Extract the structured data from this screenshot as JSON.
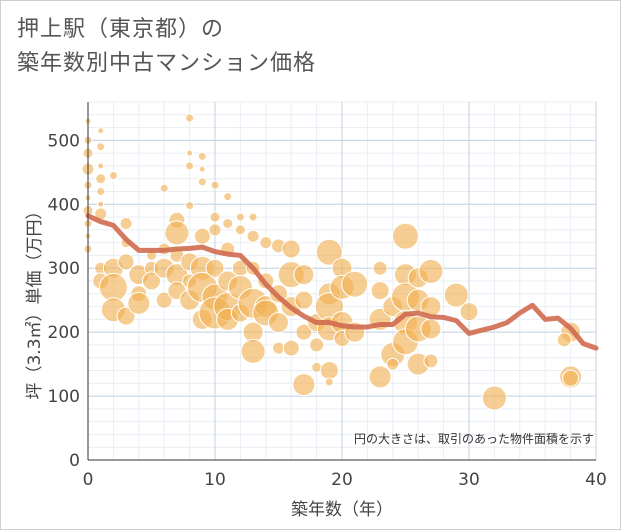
{
  "title_line1": "押上駅（東京都）の",
  "title_line2": "築年数別中古マンション価格",
  "chart_data": {
    "type": "scatter",
    "xlabel": "築年数（年）",
    "ylabel": "坪（3.3㎡）単価（万円）",
    "xlim": [
      0,
      40
    ],
    "ylim": [
      0,
      560
    ],
    "xticks": [
      0,
      10,
      20,
      30,
      40
    ],
    "yticks": [
      0,
      100,
      200,
      300,
      400,
      500
    ],
    "grid": true,
    "note": "円の大きさは、取引のあった物件面積を示す",
    "colors": {
      "bubble": "#f0b050",
      "line": "#d06a50"
    },
    "trend_line": {
      "x": [
        0,
        1,
        2,
        3,
        4,
        5,
        6,
        7,
        8,
        9,
        10,
        11,
        12,
        13,
        14,
        15,
        16,
        17,
        18,
        19,
        20,
        21,
        22,
        23,
        24,
        25,
        26,
        27,
        28,
        29,
        30,
        31,
        32,
        33,
        34,
        35,
        36,
        37,
        38,
        39,
        40
      ],
      "y": [
        382,
        373,
        367,
        345,
        328,
        328,
        328,
        330,
        331,
        333,
        326,
        322,
        320,
        300,
        275,
        255,
        238,
        225,
        215,
        215,
        210,
        208,
        208,
        212,
        212,
        228,
        230,
        224,
        223,
        218,
        198,
        203,
        208,
        215,
        230,
        242,
        220,
        222,
        206,
        182,
        175
      ]
    },
    "bubbles": [
      {
        "x": 0,
        "y": 530,
        "s": 3
      },
      {
        "x": 0,
        "y": 500,
        "s": 4
      },
      {
        "x": 0,
        "y": 480,
        "s": 5
      },
      {
        "x": 0,
        "y": 455,
        "s": 6
      },
      {
        "x": 0,
        "y": 430,
        "s": 4
      },
      {
        "x": 0,
        "y": 410,
        "s": 3
      },
      {
        "x": 0,
        "y": 390,
        "s": 5
      },
      {
        "x": 0,
        "y": 370,
        "s": 4
      },
      {
        "x": 0,
        "y": 350,
        "s": 3
      },
      {
        "x": 0,
        "y": 330,
        "s": 4
      },
      {
        "x": 1,
        "y": 515,
        "s": 3
      },
      {
        "x": 1,
        "y": 490,
        "s": 4
      },
      {
        "x": 1,
        "y": 460,
        "s": 3
      },
      {
        "x": 1,
        "y": 440,
        "s": 5
      },
      {
        "x": 1,
        "y": 420,
        "s": 4
      },
      {
        "x": 1,
        "y": 400,
        "s": 3
      },
      {
        "x": 1,
        "y": 385,
        "s": 6
      },
      {
        "x": 1,
        "y": 300,
        "s": 6
      },
      {
        "x": 1,
        "y": 280,
        "s": 8
      },
      {
        "x": 2,
        "y": 445,
        "s": 4
      },
      {
        "x": 2,
        "y": 300,
        "s": 10
      },
      {
        "x": 2,
        "y": 270,
        "s": 14
      },
      {
        "x": 2,
        "y": 235,
        "s": 12
      },
      {
        "x": 3,
        "y": 370,
        "s": 6
      },
      {
        "x": 3,
        "y": 340,
        "s": 5
      },
      {
        "x": 3,
        "y": 310,
        "s": 8
      },
      {
        "x": 3,
        "y": 225,
        "s": 9
      },
      {
        "x": 4,
        "y": 290,
        "s": 10
      },
      {
        "x": 4,
        "y": 260,
        "s": 8
      },
      {
        "x": 4,
        "y": 245,
        "s": 11
      },
      {
        "x": 5,
        "y": 320,
        "s": 5
      },
      {
        "x": 5,
        "y": 300,
        "s": 7
      },
      {
        "x": 5,
        "y": 280,
        "s": 9
      },
      {
        "x": 6,
        "y": 425,
        "s": 4
      },
      {
        "x": 6,
        "y": 330,
        "s": 6
      },
      {
        "x": 6,
        "y": 300,
        "s": 10
      },
      {
        "x": 6,
        "y": 250,
        "s": 8
      },
      {
        "x": 7,
        "y": 375,
        "s": 8
      },
      {
        "x": 7,
        "y": 355,
        "s": 12
      },
      {
        "x": 7,
        "y": 320,
        "s": 7
      },
      {
        "x": 7,
        "y": 290,
        "s": 11
      },
      {
        "x": 7,
        "y": 265,
        "s": 9
      },
      {
        "x": 8,
        "y": 535,
        "s": 4
      },
      {
        "x": 8,
        "y": 480,
        "s": 3
      },
      {
        "x": 8,
        "y": 460,
        "s": 4
      },
      {
        "x": 8,
        "y": 398,
        "s": 4
      },
      {
        "x": 8,
        "y": 310,
        "s": 9
      },
      {
        "x": 8,
        "y": 280,
        "s": 7
      },
      {
        "x": 8,
        "y": 250,
        "s": 10
      },
      {
        "x": 9,
        "y": 475,
        "s": 4
      },
      {
        "x": 9,
        "y": 455,
        "s": 3
      },
      {
        "x": 9,
        "y": 435,
        "s": 4
      },
      {
        "x": 9,
        "y": 350,
        "s": 8
      },
      {
        "x": 9,
        "y": 300,
        "s": 12
      },
      {
        "x": 9,
        "y": 270,
        "s": 15
      },
      {
        "x": 9,
        "y": 220,
        "s": 10
      },
      {
        "x": 10,
        "y": 430,
        "s": 4
      },
      {
        "x": 10,
        "y": 380,
        "s": 5
      },
      {
        "x": 10,
        "y": 360,
        "s": 6
      },
      {
        "x": 10,
        "y": 300,
        "s": 9
      },
      {
        "x": 10,
        "y": 255,
        "s": 13
      },
      {
        "x": 10,
        "y": 230,
        "s": 16
      },
      {
        "x": 11,
        "y": 412,
        "s": 4
      },
      {
        "x": 11,
        "y": 370,
        "s": 5
      },
      {
        "x": 11,
        "y": 330,
        "s": 7
      },
      {
        "x": 11,
        "y": 280,
        "s": 10
      },
      {
        "x": 11,
        "y": 240,
        "s": 14
      },
      {
        "x": 11,
        "y": 220,
        "s": 11
      },
      {
        "x": 12,
        "y": 380,
        "s": 4
      },
      {
        "x": 12,
        "y": 360,
        "s": 5
      },
      {
        "x": 12,
        "y": 300,
        "s": 8
      },
      {
        "x": 12,
        "y": 270,
        "s": 12
      },
      {
        "x": 12,
        "y": 230,
        "s": 9
      },
      {
        "x": 13,
        "y": 380,
        "s": 4
      },
      {
        "x": 13,
        "y": 350,
        "s": 6
      },
      {
        "x": 13,
        "y": 300,
        "s": 7
      },
      {
        "x": 13,
        "y": 245,
        "s": 15
      },
      {
        "x": 13,
        "y": 200,
        "s": 10
      },
      {
        "x": 13,
        "y": 170,
        "s": 12
      },
      {
        "x": 14,
        "y": 340,
        "s": 6
      },
      {
        "x": 14,
        "y": 280,
        "s": 8
      },
      {
        "x": 14,
        "y": 240,
        "s": 11
      },
      {
        "x": 14,
        "y": 230,
        "s": 13
      },
      {
        "x": 15,
        "y": 335,
        "s": 7
      },
      {
        "x": 15,
        "y": 260,
        "s": 9
      },
      {
        "x": 15,
        "y": 215,
        "s": 10
      },
      {
        "x": 15,
        "y": 175,
        "s": 6
      },
      {
        "x": 16,
        "y": 330,
        "s": 9
      },
      {
        "x": 16,
        "y": 290,
        "s": 13
      },
      {
        "x": 16,
        "y": 240,
        "s": 10
      },
      {
        "x": 16,
        "y": 175,
        "s": 8
      },
      {
        "x": 17,
        "y": 290,
        "s": 10
      },
      {
        "x": 17,
        "y": 250,
        "s": 9
      },
      {
        "x": 17,
        "y": 200,
        "s": 8
      },
      {
        "x": 17,
        "y": 118,
        "s": 11
      },
      {
        "x": 18,
        "y": 215,
        "s": 9
      },
      {
        "x": 18,
        "y": 180,
        "s": 7
      },
      {
        "x": 18,
        "y": 145,
        "s": 5
      },
      {
        "x": 19,
        "y": 325,
        "s": 13
      },
      {
        "x": 19,
        "y": 260,
        "s": 11
      },
      {
        "x": 19,
        "y": 240,
        "s": 14
      },
      {
        "x": 19,
        "y": 205,
        "s": 12
      },
      {
        "x": 19,
        "y": 140,
        "s": 9
      },
      {
        "x": 19,
        "y": 122,
        "s": 4
      },
      {
        "x": 20,
        "y": 300,
        "s": 10
      },
      {
        "x": 20,
        "y": 270,
        "s": 12
      },
      {
        "x": 20,
        "y": 215,
        "s": 11
      },
      {
        "x": 20,
        "y": 190,
        "s": 8
      },
      {
        "x": 21,
        "y": 275,
        "s": 13
      },
      {
        "x": 21,
        "y": 200,
        "s": 10
      },
      {
        "x": 23,
        "y": 300,
        "s": 7
      },
      {
        "x": 23,
        "y": 265,
        "s": 9
      },
      {
        "x": 23,
        "y": 220,
        "s": 11
      },
      {
        "x": 23,
        "y": 130,
        "s": 11
      },
      {
        "x": 24,
        "y": 165,
        "s": 12
      },
      {
        "x": 24,
        "y": 240,
        "s": 10
      },
      {
        "x": 24,
        "y": 150,
        "s": 6
      },
      {
        "x": 25,
        "y": 350,
        "s": 13
      },
      {
        "x": 25,
        "y": 290,
        "s": 11
      },
      {
        "x": 25,
        "y": 255,
        "s": 14
      },
      {
        "x": 25,
        "y": 215,
        "s": 12
      },
      {
        "x": 25,
        "y": 185,
        "s": 13
      },
      {
        "x": 26,
        "y": 285,
        "s": 10
      },
      {
        "x": 26,
        "y": 250,
        "s": 11
      },
      {
        "x": 26,
        "y": 205,
        "s": 13
      },
      {
        "x": 26,
        "y": 150,
        "s": 11
      },
      {
        "x": 27,
        "y": 295,
        "s": 12
      },
      {
        "x": 27,
        "y": 240,
        "s": 10
      },
      {
        "x": 27,
        "y": 205,
        "s": 10
      },
      {
        "x": 27,
        "y": 155,
        "s": 7
      },
      {
        "x": 29,
        "y": 258,
        "s": 12
      },
      {
        "x": 30,
        "y": 232,
        "s": 9
      },
      {
        "x": 32,
        "y": 97,
        "s": 12
      },
      {
        "x": 38,
        "y": 200,
        "s": 10
      },
      {
        "x": 37.5,
        "y": 188,
        "s": 7
      },
      {
        "x": 38,
        "y": 130,
        "s": 11
      },
      {
        "x": 38,
        "y": 128,
        "s": 8
      }
    ]
  }
}
